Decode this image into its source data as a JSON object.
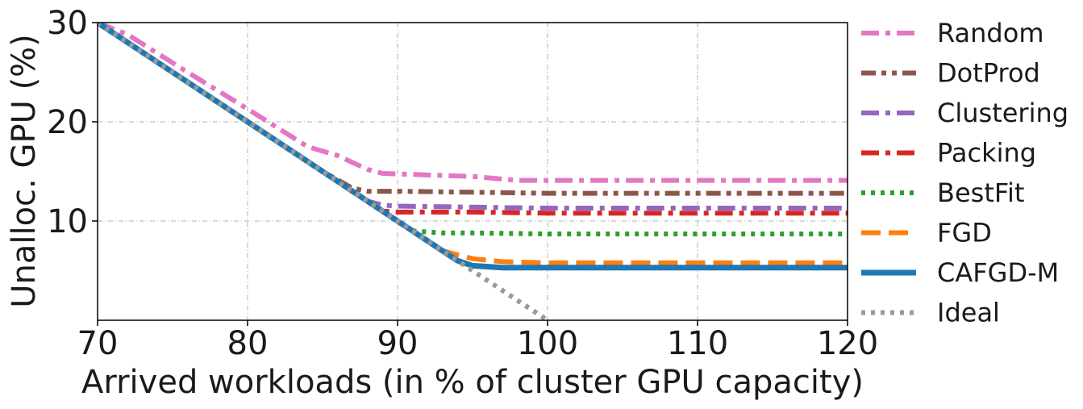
{
  "chart_data": {
    "type": "line",
    "title": "",
    "xlabel": "Arrived workloads (in % of cluster GPU capacity)",
    "ylabel": "Unalloc. GPU (%)",
    "xlim": [
      70,
      120
    ],
    "ylim": [
      0,
      30
    ],
    "xticks": [
      70,
      80,
      90,
      100,
      110,
      120
    ],
    "yticks": [
      10,
      20,
      30
    ],
    "grid": true,
    "legend_position": "outside-right",
    "series": [
      {
        "name": "Random",
        "color": "#e377c2",
        "dash": "dashdot",
        "x": [
          70,
          72,
          76,
          80,
          84,
          86,
          88,
          89,
          95,
          98,
          100,
          105,
          110,
          115,
          120
        ],
        "y": [
          30.0,
          28.8,
          25.0,
          21.3,
          17.5,
          16.6,
          15.2,
          14.8,
          14.5,
          14.1,
          14.1,
          14.1,
          14.1,
          14.1,
          14.1
        ]
      },
      {
        "name": "DotProd",
        "color": "#8c564b",
        "dash": "dashdotdot",
        "x": [
          70,
          75,
          80,
          85,
          87,
          88,
          90,
          95,
          100,
          110,
          120
        ],
        "y": [
          30.0,
          25.0,
          20.0,
          15.0,
          13.3,
          13.0,
          13.0,
          12.9,
          12.8,
          12.8,
          12.8
        ]
      },
      {
        "name": "Clustering",
        "color": "#9467bd",
        "dash": "dashdot",
        "x": [
          70,
          75,
          80,
          85,
          88,
          89,
          90,
          95,
          100,
          110,
          120
        ],
        "y": [
          30.0,
          25.0,
          20.0,
          15.0,
          12.0,
          11.6,
          11.5,
          11.4,
          11.3,
          11.3,
          11.3
        ]
      },
      {
        "name": "Packing",
        "color": "#d62728",
        "dash": "dashdot",
        "x": [
          70,
          75,
          80,
          85,
          88,
          89,
          90,
          95,
          100,
          110,
          120
        ],
        "y": [
          30.0,
          25.0,
          20.0,
          15.0,
          12.0,
          11.0,
          10.9,
          10.9,
          10.8,
          10.8,
          10.8
        ]
      },
      {
        "name": "BestFit",
        "color": "#2ca02c",
        "dash": "dotted",
        "x": [
          70,
          75,
          80,
          85,
          90,
          91,
          93,
          95,
          100,
          110,
          120
        ],
        "y": [
          30.0,
          25.0,
          20.0,
          15.0,
          10.0,
          9.0,
          8.8,
          8.8,
          8.7,
          8.7,
          8.7
        ]
      },
      {
        "name": "FGD",
        "color": "#ff7f0e",
        "dash": "dashed",
        "x": [
          70,
          75,
          80,
          85,
          90,
          93,
          95,
          97,
          100,
          110,
          120
        ],
        "y": [
          30.0,
          25.0,
          20.0,
          15.0,
          10.0,
          7.0,
          6.2,
          5.9,
          5.8,
          5.8,
          5.8
        ]
      },
      {
        "name": "CAFGD-M",
        "color": "#1f77b4",
        "dash": "solid",
        "x": [
          70,
          75,
          80,
          85,
          90,
          93,
          94,
          95,
          97,
          100,
          110,
          120
        ],
        "y": [
          30.0,
          25.0,
          20.0,
          15.0,
          10.0,
          7.0,
          6.0,
          5.5,
          5.3,
          5.3,
          5.3,
          5.3
        ]
      },
      {
        "name": "Ideal",
        "color": "#999999",
        "dash": "dotted",
        "x": [
          70,
          100
        ],
        "y": [
          30.0,
          0.0
        ]
      }
    ]
  }
}
